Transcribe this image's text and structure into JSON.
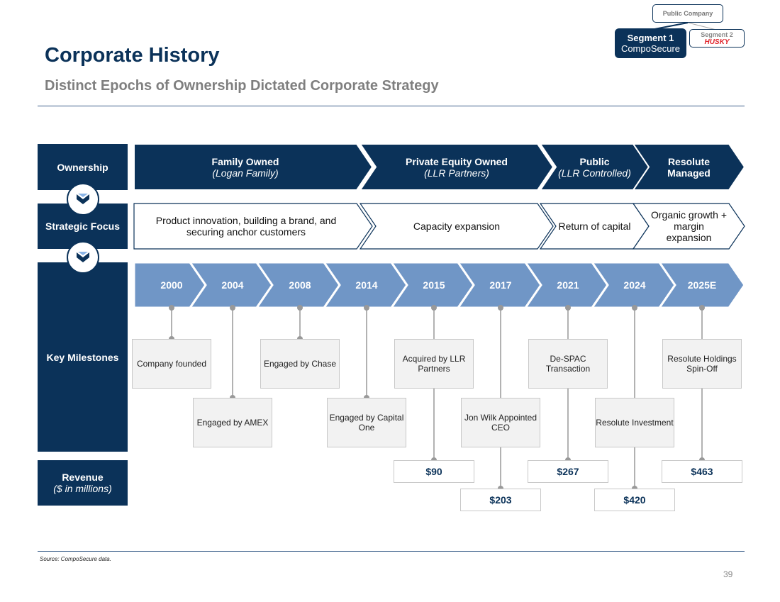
{
  "header": {
    "title": "Corporate History",
    "subtitle": "Distinct Epochs of Ownership Dictated Corporate Strategy"
  },
  "logo": {
    "public": "Public Company",
    "segment1": "Segment 1",
    "segment1_brand": "CompoSecure",
    "segment2": "Segment 2",
    "segment2_brand": "HUSKY"
  },
  "rows": {
    "ownership": "Ownership",
    "strategic": "Strategic Focus",
    "milestones": "Key Milestones",
    "revenue": "Revenue",
    "revenue_sub": "($ in millions)"
  },
  "ownership": [
    {
      "title": "Family Owned",
      "sub": "(Logan Family)"
    },
    {
      "title": "Private Equity Owned",
      "sub": "(LLR Partners)"
    },
    {
      "title": "Public",
      "sub": "(LLR Controlled)"
    },
    {
      "title": "Resolute Managed",
      "sub": ""
    }
  ],
  "strategic": [
    "Product innovation, building a brand, and securing anchor customers",
    "Capacity expansion",
    "Return of capital",
    "Organic growth + margin expansion"
  ],
  "years": [
    "2000",
    "2004",
    "2008",
    "2014",
    "2015",
    "2017",
    "2021",
    "2024",
    "2025E"
  ],
  "milestones": [
    "Company founded",
    "Engaged by AMEX",
    "Engaged by Chase",
    "Engaged by Capital One",
    "Acquired by LLR Partners",
    "Jon Wilk Appointed CEO",
    "De-SPAC Transaction",
    "Resolute Investment",
    "Resolute Holdings Spin-Off"
  ],
  "revenue": {
    "2015": "$90",
    "2017": "$203",
    "2021": "$267",
    "2024": "$420",
    "2025E": "$463"
  },
  "colors": {
    "navy": "#0b3259",
    "timeline": "#7096c6",
    "box": "#f2f2f2",
    "accent_red": "#e0242b"
  },
  "footer": {
    "source": "Source: CompoSecure data.",
    "page": "39"
  }
}
